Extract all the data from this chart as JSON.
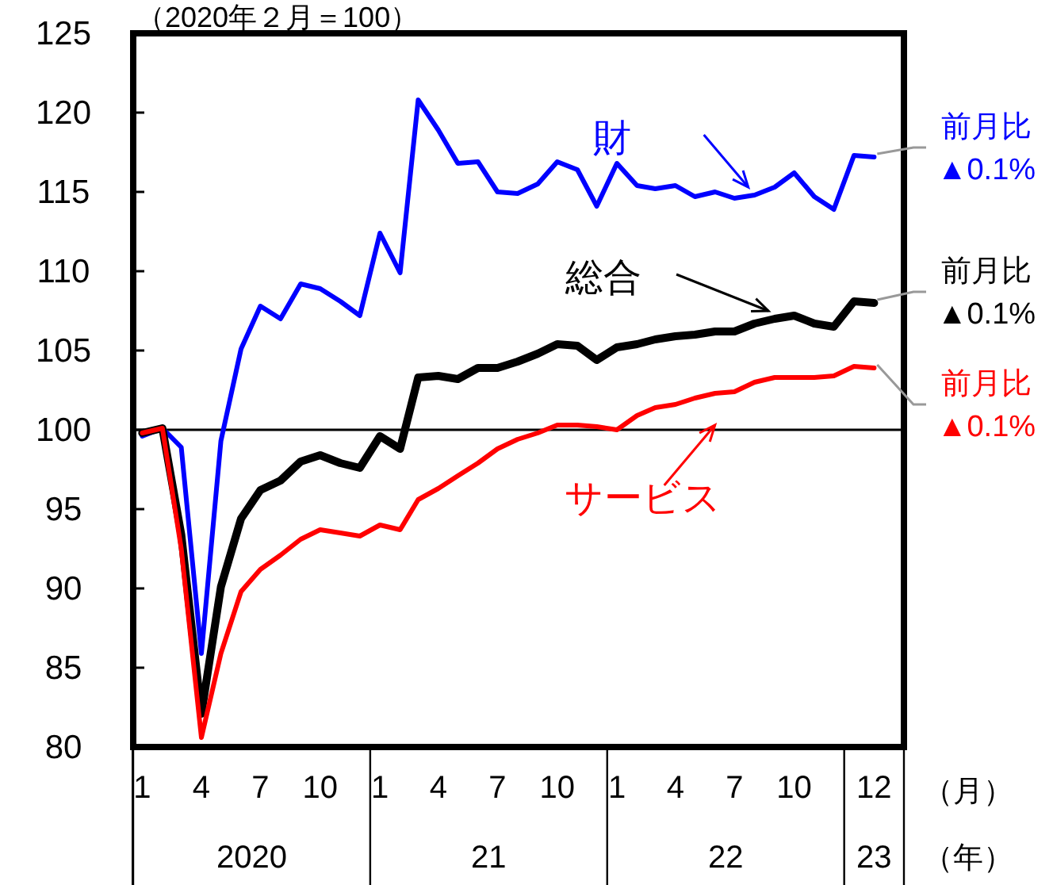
{
  "chart_data": {
    "type": "line",
    "subtitle": "（2020年２月＝100）",
    "xlabel": "（月）",
    "x": [
      "2020-01",
      "2020-02",
      "2020-03",
      "2020-04",
      "2020-05",
      "2020-06",
      "2020-07",
      "2020-08",
      "2020-09",
      "2020-10",
      "2020-11",
      "2020-12",
      "2021-01",
      "2021-02",
      "2021-03",
      "2021-04",
      "2021-05",
      "2021-06",
      "2021-07",
      "2021-08",
      "2021-09",
      "2021-10",
      "2021-11",
      "2021-12",
      "2022-01",
      "2022-02",
      "2022-03",
      "2022-04",
      "2022-05",
      "2022-06",
      "2022-07",
      "2022-08",
      "2022-09",
      "2022-10",
      "2022-11",
      "2022-12",
      "2023-01",
      "2023-02"
    ],
    "series": [
      {
        "name": "財",
        "color": "#0000ff",
        "values": [
          99.6,
          100.1,
          98.9,
          85.9,
          99.3,
          105.1,
          107.8,
          107.0,
          109.2,
          108.9,
          108.1,
          107.2,
          112.4,
          109.9,
          120.8,
          118.9,
          116.8,
          116.9,
          115.0,
          114.9,
          115.5,
          116.9,
          116.4,
          114.1,
          116.8,
          115.4,
          115.2,
          115.4,
          114.7,
          115.0,
          114.6,
          114.8,
          115.3,
          116.2,
          114.7,
          113.9,
          117.3,
          117.2
        ]
      },
      {
        "name": "総合",
        "color": "#000000",
        "values": [
          99.8,
          100.1,
          93.4,
          82.1,
          90.1,
          94.4,
          96.2,
          96.8,
          98.0,
          98.4,
          97.9,
          97.6,
          99.6,
          98.8,
          103.3,
          103.4,
          103.2,
          103.9,
          103.9,
          104.3,
          104.8,
          105.4,
          105.3,
          104.4,
          105.2,
          105.4,
          105.7,
          105.9,
          106.0,
          106.2,
          106.2,
          106.7,
          107.0,
          107.2,
          106.7,
          106.5,
          108.1,
          108.0
        ]
      },
      {
        "name": "サービス",
        "color": "#ff0000",
        "values": [
          99.8,
          100.1,
          92.5,
          80.6,
          85.9,
          89.8,
          91.2,
          92.1,
          93.1,
          93.7,
          93.5,
          93.3,
          94.0,
          93.7,
          95.6,
          96.3,
          97.1,
          97.9,
          98.8,
          99.4,
          99.8,
          100.3,
          100.3,
          100.2,
          100.0,
          100.9,
          101.4,
          101.6,
          102.0,
          102.3,
          102.4,
          103.0,
          103.3,
          103.3,
          103.3,
          103.4,
          104.0,
          103.9
        ]
      }
    ],
    "xlim": [
      "2019-12-18",
      "2023-03-19"
    ],
    "xticks": [
      {
        "value": "2020-01",
        "label": "1"
      },
      {
        "value": "2020-04",
        "label": "4"
      },
      {
        "value": "2020-07",
        "label": "7"
      },
      {
        "value": "2020-10",
        "label": "10"
      },
      {
        "value": "2021-01",
        "label": "1"
      },
      {
        "value": "2021-04",
        "label": "4"
      },
      {
        "value": "2021-07",
        "label": "7"
      },
      {
        "value": "2021-10",
        "label": "10"
      },
      {
        "value": "2022-01",
        "label": "1"
      },
      {
        "value": "2022-04",
        "label": "4"
      },
      {
        "value": "2022-07",
        "label": "7"
      },
      {
        "value": "2022-10",
        "label": "10"
      },
      {
        "value": "2023-02",
        "label": "12"
      }
    ],
    "ylim": [
      80,
      125
    ],
    "yticks": [
      80,
      85,
      90,
      95,
      100,
      105,
      110,
      115,
      120,
      125
    ],
    "ref_lines": [
      {
        "axis": "y",
        "value": 100,
        "color": "#000000"
      }
    ],
    "annotations": [
      {
        "text": "前月比\n▲0.1%",
        "x": "2023-02",
        "y": 117.2
      },
      {
        "text": "前月比\n▲0.1%",
        "x": "2023-02",
        "y": 108.0
      },
      {
        "text": "前月比\n▲0.1%",
        "x": "2023-02",
        "y": 103.9
      },
      "2020",
      "21",
      "22",
      "23",
      "（年）"
    ],
    "grid": false,
    "legend": "top"
  }
}
